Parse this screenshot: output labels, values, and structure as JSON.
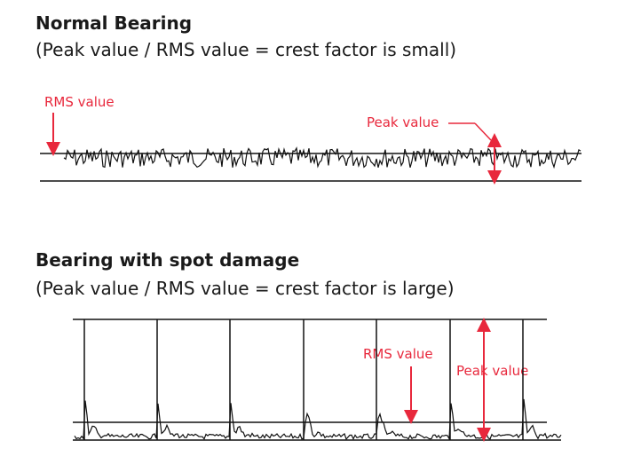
{
  "section1": {
    "title": "Normal Bearing",
    "subtitle": "(Peak value / RMS value = crest factor is small)",
    "rms_label": "RMS value",
    "peak_label": "Peak value"
  },
  "section2": {
    "title": "Bearing with spot damage",
    "subtitle": "(Peak value / RMS value = crest factor is large)",
    "rms_label": "RMS value",
    "peak_label": "Peak value"
  },
  "colors": {
    "text": "#1a1a1a",
    "accent": "#e8283c",
    "signal": "#111111"
  },
  "diagram": {
    "normal_signal": "continuous noise, small crest factor",
    "damaged_signal": "periodic impulse spikes",
    "damaged_spike_count": 7
  }
}
